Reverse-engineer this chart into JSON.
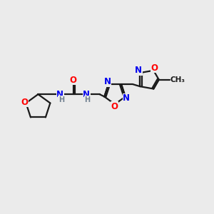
{
  "background_color": "#ebebeb",
  "bond_color": "#1a1a1a",
  "bond_width": 1.6,
  "atom_colors": {
    "O": "#ff0000",
    "N": "#0000ee",
    "C": "#1a1a1a",
    "H": "#708090"
  },
  "font_size_atom": 8.5,
  "font_size_small": 7.0
}
